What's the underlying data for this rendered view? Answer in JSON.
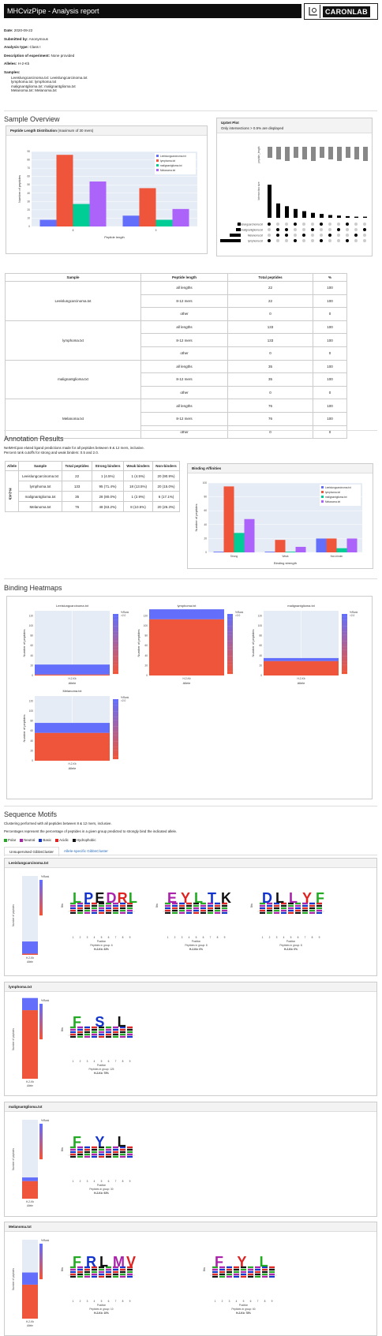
{
  "header": {
    "title": "MHCvizPipe - Analysis report",
    "logo_text": "CARONLAB"
  },
  "meta": {
    "date_label": "Date:",
    "date": "2020-09-22",
    "submitted_label": "Submitted by:",
    "submitted": "Anonymous",
    "analysis_label": "Analysis type:",
    "analysis": "Class I",
    "desc_label": "Description of experiment:",
    "desc": "None provided",
    "alleles_label": "Alleles:",
    "alleles": "H-2-Kb",
    "samples_label": "Samples:",
    "samples": [
      "Leeislungcarcinoma.txt: Leeislungcarcinoma.txt",
      "lymphoma.txt: lymphoma.txt",
      "malignantglioma.txt: malignantglioma.txt",
      "Melanoma.txt: Melanoma.txt"
    ]
  },
  "sample_overview": {
    "title": "Sample Overview"
  },
  "peptide_length": {
    "title": "Peptide Length Distribution",
    "subtitle": "(maximum of 30 mers)"
  },
  "upset": {
    "title": "UpSet Plot",
    "subtitle": "Only intersections > 0.5% are displayed",
    "set_labels": [
      "Leeislungcarcinoma.txt",
      "malignantglioma.txt",
      "Melanoma.txt",
      "lymphoma.txt"
    ],
    "peptide_length_label": "peptide_length",
    "intersection_label": "Intersection size"
  },
  "sample_table": {
    "headers": [
      "Sample",
      "Peptide length",
      "Total peptides",
      "%"
    ],
    "rows": [
      {
        "sample": "Leeislungcarcinoma.txt",
        "sub": [
          [
            "all lengths",
            "22",
            "100"
          ],
          [
            "8-12 mers",
            "22",
            "100"
          ],
          [
            "other",
            "0",
            "0"
          ]
        ]
      },
      {
        "sample": "lymphoma.txt",
        "sub": [
          [
            "all lengths",
            "133",
            "100"
          ],
          [
            "8-12 mers",
            "133",
            "100"
          ],
          [
            "other",
            "0",
            "0"
          ]
        ]
      },
      {
        "sample": "malignantglioma.txt",
        "sub": [
          [
            "all lengths",
            "35",
            "100"
          ],
          [
            "8-12 mers",
            "35",
            "100"
          ],
          [
            "other",
            "0",
            "0"
          ]
        ]
      },
      {
        "sample": "Melanoma.txt",
        "sub": [
          [
            "all lengths",
            "76",
            "100"
          ],
          [
            "8-12 mers",
            "76",
            "100"
          ],
          [
            "other",
            "0",
            "0"
          ]
        ]
      }
    ]
  },
  "annotation": {
    "title": "Annotation Results",
    "desc1": "NetMHCpan eluted ligand predictions made for all peptides between 8 & 12 mers, inclusive.",
    "desc2": "Percent rank cutoffs for strong and weak binders: 0.5 and 2.0.",
    "headers": [
      "Allele",
      "Sample",
      "Total peptides",
      "Strong binders",
      "Weak binders",
      "Non-binders"
    ],
    "allele": "H-2-Kb",
    "rows": [
      [
        "Leeislungcarcinoma.txt",
        "22",
        "1 (4.5%)",
        "1 (4.5%)",
        "20 (90.9%)"
      ],
      [
        "lymphoma.txt",
        "133",
        "95 (71.4%)",
        "18 (13.5%)",
        "20 (15.0%)"
      ],
      [
        "malignantglioma.txt",
        "35",
        "28 (80.0%)",
        "1 (2.9%)",
        "6 (17.1%)"
      ],
      [
        "Melanoma.txt",
        "76",
        "48 (63.2%)",
        "8 (10.5%)",
        "20 (26.3%)"
      ]
    ]
  },
  "binding_affinities": {
    "title": "Binding Affinities"
  },
  "binding_heatmaps": {
    "title": "Binding Heatmaps",
    "charts": [
      "Leeislungcarcinoma.txt",
      "lymphoma.txt",
      "malignantglioma.txt",
      "Melanoma.txt"
    ],
    "xlabel": "Allele",
    "ylabel": "Number of peptides",
    "cat": "H-2-Kb",
    "cbar_title": "%Rank",
    "cbar_max": ">2.0"
  },
  "sequence_motifs": {
    "title": "Sequence Motifs",
    "desc1": "Clustering performed with all peptides between 8 & 12 mers, inclusive.",
    "desc2": "Percentages represent the percentage of peptides in a given group predicted to strongly bind the indicated allele.",
    "legend": [
      {
        "label": "Polar",
        "color": "#22aa22"
      },
      {
        "label": "Neutral",
        "color": "#aa22aa"
      },
      {
        "label": "Basic",
        "color": "#1133cc"
      },
      {
        "label": "Acidic",
        "color": "#dd2222"
      },
      {
        "label": "Hydrophobic",
        "color": "#111111"
      }
    ],
    "tabs": [
      "Unsupervised GibbsCluster",
      "Allele-specific GibbsCluster"
    ],
    "sections": [
      {
        "name": "Leeislungcarcinoma.txt",
        "logos": [
          {
            "letters": "LPEDRL",
            "caption1": "Peptides in group: 6",
            "caption2": "H-2-Kb: 33%"
          },
          {
            "letters": "EYLTK",
            "caption1": "Peptides in group: 8",
            "caption2": "H-2-Kb: 0%"
          },
          {
            "letters": "DLLYF",
            "caption1": "Peptides in group: 8",
            "caption2": "H-2-Kb: 0%"
          }
        ]
      },
      {
        "name": "lymphoma.txt",
        "logos": [
          {
            "letters": "FSL",
            "caption1": "Peptides in group: 125",
            "caption2": "H-2-Kb: 75%"
          }
        ]
      },
      {
        "name": "malignantglioma.txt",
        "logos": [
          {
            "letters": "FYL",
            "caption1": "Peptides in group: 30",
            "caption2": "H-2-Kb: 93%"
          }
        ]
      },
      {
        "name": "Melanoma.txt",
        "logos": [
          {
            "letters": "FRLMV",
            "caption1": "Peptides in group: 10",
            "caption2": "H-2-Kb: 10%"
          },
          {
            "letters": "FYL",
            "caption1": "Peptides in group: 60",
            "caption2": "H-2-Kb: 78%"
          }
        ]
      }
    ],
    "logo_ylabel": "Bits",
    "logo_xlabel": "Position"
  },
  "chart_data": [
    {
      "type": "bar",
      "categories": [
        "8",
        "9"
      ],
      "xlabel": "Peptide length",
      "ylabel": "Number of peptides",
      "ylim": [
        0,
        90
      ],
      "legend": "top-right",
      "series": [
        {
          "name": "Leeislungcarcinoma.txt",
          "color": "#636efa",
          "values": [
            8,
            13
          ]
        },
        {
          "name": "lymphoma.txt",
          "color": "#ef553b",
          "values": [
            86,
            46
          ]
        },
        {
          "name": "malignantglioma.txt",
          "color": "#00cc96",
          "values": [
            27,
            8
          ]
        },
        {
          "name": "Melanoma.txt",
          "color": "#ab63fa",
          "values": [
            54,
            21
          ]
        }
      ]
    },
    {
      "type": "bar",
      "categories": [
        "Strong",
        "Weak",
        "Non-binder"
      ],
      "xlabel": "Binding strength",
      "ylabel": "Number of peptides",
      "ylim": [
        0,
        100
      ],
      "legend": "top-right",
      "series": [
        {
          "name": "Leeislungcarcinoma.txt",
          "color": "#636efa",
          "values": [
            1,
            1,
            20
          ]
        },
        {
          "name": "lymphoma.txt",
          "color": "#ef553b",
          "values": [
            95,
            18,
            20
          ]
        },
        {
          "name": "malignantglioma.txt",
          "color": "#00cc96",
          "values": [
            28,
            1,
            6
          ]
        },
        {
          "name": "Melanoma.txt",
          "color": "#ab63fa",
          "values": [
            48,
            8,
            20
          ]
        }
      ]
    },
    {
      "type": "bar",
      "stacked": true,
      "title": "Leeislungcarcinoma.txt",
      "categories": [
        "H-2-Kb"
      ],
      "ylim": [
        0,
        130
      ],
      "series": [
        {
          "name": "strong",
          "values": [
            1
          ]
        },
        {
          "name": "weak",
          "values": [
            1
          ]
        },
        {
          "name": "non",
          "values": [
            20
          ]
        }
      ]
    },
    {
      "type": "bar",
      "stacked": true,
      "title": "lymphoma.txt",
      "categories": [
        "H-2-Kb"
      ],
      "ylim": [
        0,
        130
      ],
      "series": [
        {
          "name": "strong",
          "values": [
            95
          ]
        },
        {
          "name": "weak",
          "values": [
            18
          ]
        },
        {
          "name": "non",
          "values": [
            20
          ]
        }
      ]
    },
    {
      "type": "bar",
      "stacked": true,
      "title": "malignantglioma.txt",
      "categories": [
        "H-2-Kb"
      ],
      "ylim": [
        0,
        130
      ],
      "series": [
        {
          "name": "strong",
          "values": [
            28
          ]
        },
        {
          "name": "weak",
          "values": [
            1
          ]
        },
        {
          "name": "non",
          "values": [
            6
          ]
        }
      ]
    },
    {
      "type": "bar",
      "stacked": true,
      "title": "Melanoma.txt",
      "categories": [
        "H-2-Kb"
      ],
      "ylim": [
        0,
        130
      ],
      "series": [
        {
          "name": "strong",
          "values": [
            48
          ]
        },
        {
          "name": "weak",
          "values": [
            8
          ]
        },
        {
          "name": "non",
          "values": [
            20
          ]
        }
      ]
    }
  ]
}
